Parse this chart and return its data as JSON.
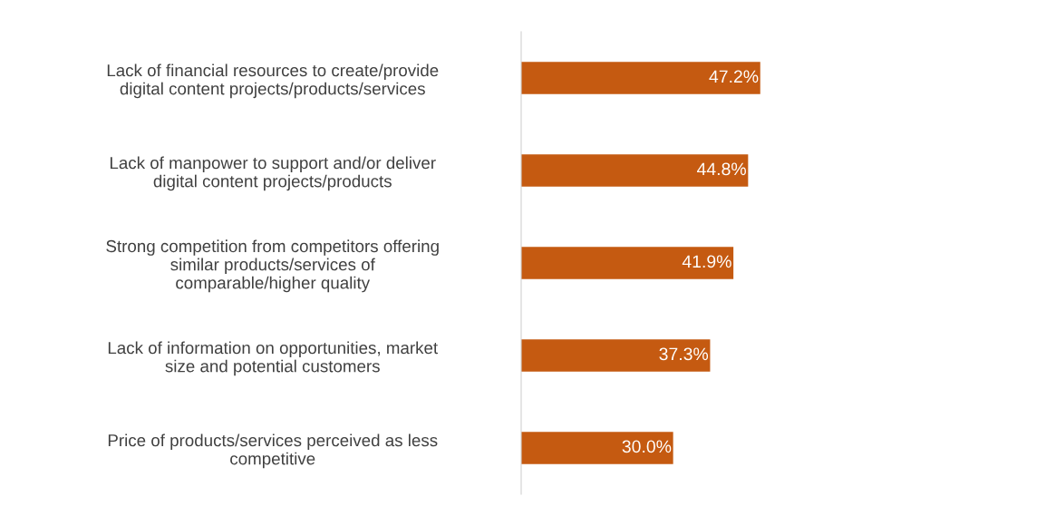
{
  "chart_data": {
    "type": "bar",
    "orientation": "horizontal",
    "categories": [
      "Lack of financial resources to create/provide\ndigital content projects/products/services",
      "Lack of manpower to support and/or deliver\ndigital content projects/products",
      "Strong competition from competitors offering\nsimilar products/services of\ncomparable/higher quality",
      "Lack of information on opportunities, market\nsize and potential customers",
      "Price of products/services perceived as less\ncompetitive"
    ],
    "values": [
      47.2,
      44.8,
      41.9,
      37.3,
      30.0
    ],
    "value_labels": [
      "47.2%",
      "44.8%",
      "41.9%",
      "37.3%",
      "30.0%"
    ],
    "color": "#c55a11",
    "tick_labels": "y"
  }
}
